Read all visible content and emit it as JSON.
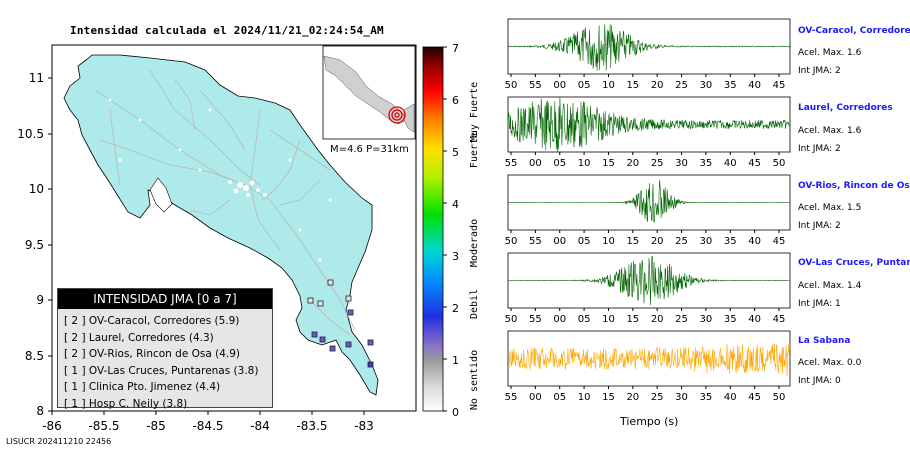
{
  "map": {
    "title": "Intensidad calculada el 2024/11/21_02:24:54_AM",
    "y_ticks": [
      "11",
      "10.5",
      "10",
      "9.5",
      "9",
      "8.5",
      "8"
    ],
    "x_ticks": [
      "-86",
      "-85.5",
      "-85",
      "-84.5",
      "-84",
      "-83.5",
      "-83"
    ],
    "inset_label": "M=4.6 P=31km",
    "footer_code": "LISUCR 202411210 22456"
  },
  "colorbar": {
    "ticks": [
      "7",
      "6",
      "5",
      "4",
      "3",
      "2",
      "1",
      "0"
    ],
    "labels": [
      "Muy Fuerte",
      "Fuerte",
      "Moderado",
      "Debil",
      "No sentido"
    ]
  },
  "legend": {
    "title": "INTENSIDAD JMA [0 a 7]",
    "items": [
      "[ 2 ]  OV-Caracol, Corredores (5.9)",
      "[ 2 ]  Laurel, Corredores (4.3)",
      "[ 2 ]  OV-Rios, Rincon de Osa (4.9)",
      "[ 1 ]  OV-Las Cruces, Puntarenas (3.8)",
      "[ 1 ]  Clinica Pto. Jimenez (4.4)",
      "[ 1 ]  Hosp C. Neily (3.8)"
    ]
  },
  "traces": [
    {
      "title": "OV-Caracol, Corredore",
      "acel": "Acel. Max. 1.6",
      "int": "Int JMA: 2",
      "color": "#006400",
      "ticks": [
        "50",
        "55",
        "00",
        "05",
        "10",
        "15",
        "20",
        "25",
        "30",
        "35",
        "40",
        "45"
      ]
    },
    {
      "title": "Laurel, Corredores",
      "acel": "Acel. Max. 1.6",
      "int": "Int JMA: 2",
      "color": "#006400",
      "ticks": [
        "55",
        "00",
        "05",
        "10",
        "15",
        "20",
        "25",
        "30",
        "35",
        "40",
        "45",
        "50"
      ]
    },
    {
      "title": "OV-Rios, Rincon de Os",
      "acel": "Acel. Max. 1.5",
      "int": "Int JMA: 2",
      "color": "#006400",
      "ticks": [
        "50",
        "55",
        "00",
        "05",
        "10",
        "15",
        "20",
        "25",
        "30",
        "35",
        "40",
        "45"
      ]
    },
    {
      "title": "OV-Las Cruces, Puntar",
      "acel": "Acel. Max. 1.4",
      "int": "Int JMA: 1",
      "color": "#006400",
      "ticks": [
        "50",
        "55",
        "00",
        "05",
        "10",
        "15",
        "20",
        "25",
        "30",
        "35",
        "40",
        "45"
      ]
    },
    {
      "title": "La Sabana",
      "acel": "Acel. Max. 0.0",
      "int": "Int JMA: 0",
      "color": "#ffa500",
      "ticks": [
        "55",
        "00",
        "05",
        "10",
        "15",
        "20",
        "25",
        "30",
        "35",
        "40",
        "45",
        "50"
      ]
    }
  ],
  "traces_xlabel": "Tiempo (s)",
  "colors": {
    "land": "#aeeaea",
    "road": "#b8b8b8",
    "station_outline": "#222222"
  }
}
